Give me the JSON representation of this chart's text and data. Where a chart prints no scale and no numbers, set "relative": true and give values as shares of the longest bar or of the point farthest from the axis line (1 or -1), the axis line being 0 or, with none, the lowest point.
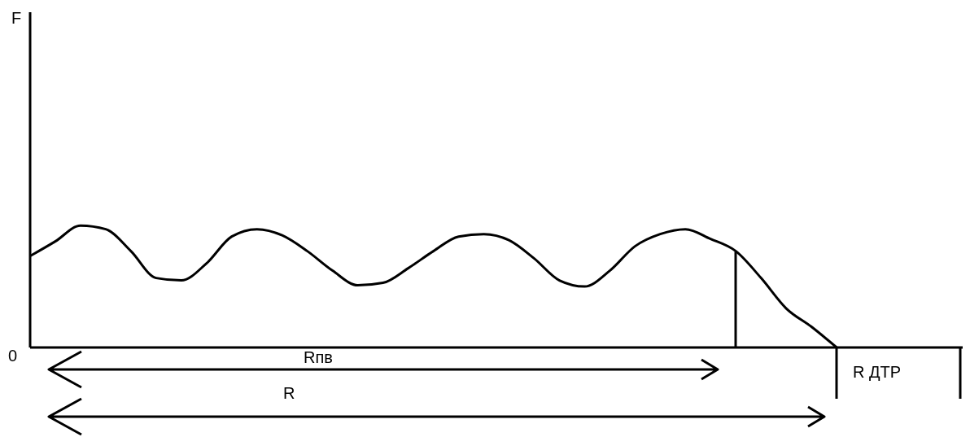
{
  "chart_data": {
    "type": "line",
    "relative": true,
    "color": "#000000",
    "marker": "none",
    "line_style": "solid",
    "categories": [
      null,
      null,
      null,
      null,
      null,
      null,
      null,
      null,
      null,
      null,
      null,
      null,
      null,
      null,
      null,
      null,
      null,
      null,
      null,
      null,
      null,
      null,
      null,
      null,
      null,
      null,
      null,
      null,
      null,
      null,
      null,
      null,
      null
    ],
    "values": [
      0.75,
      0.87,
      1,
      0.97,
      0.79,
      0.57,
      0.55,
      0.69,
      0.91,
      0.97,
      0.92,
      0.79,
      0.63,
      0.51,
      0.53,
      0.65,
      0.79,
      0.91,
      0.93,
      0.88,
      0.73,
      0.55,
      0.5,
      0.63,
      0.83,
      0.93,
      0.97,
      0.89,
      0.79,
      0.57,
      0.32,
      0.17,
      0
    ],
    "annotations": [
      "0",
      "Rпв",
      "R",
      "R ДТР",
      "F"
    ]
  }
}
